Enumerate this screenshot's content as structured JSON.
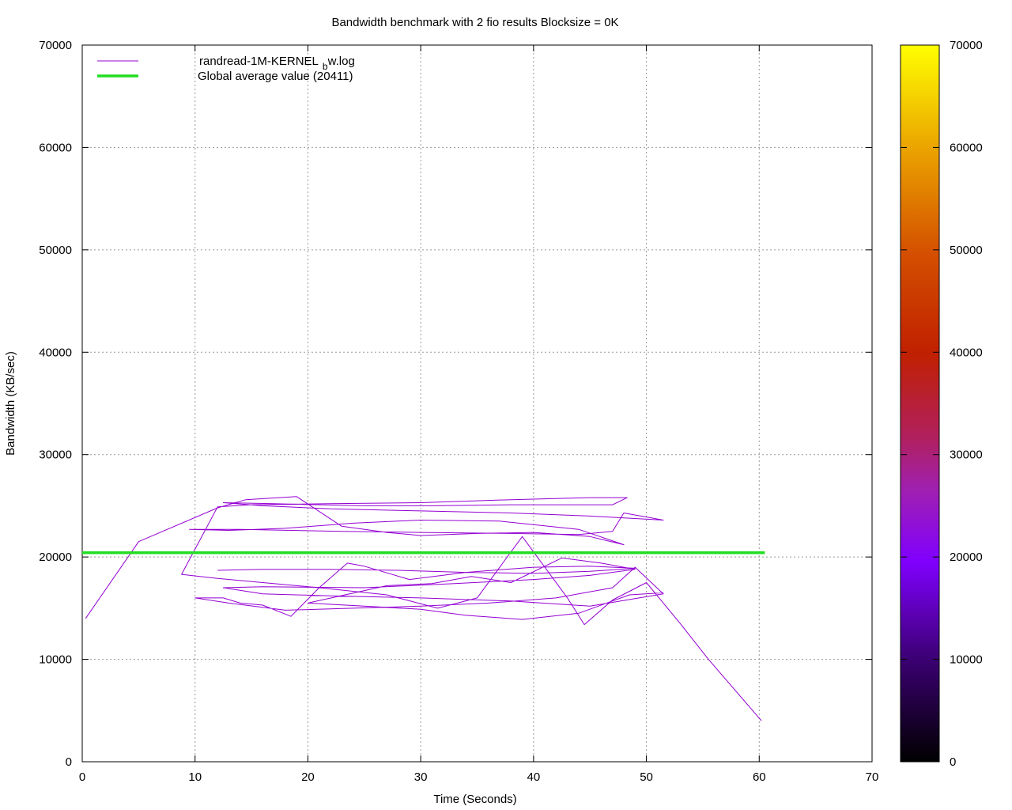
{
  "chart_data": {
    "type": "line",
    "title": "Bandwidth benchmark with 2 fio results  Blocksize = 0K",
    "xlabel": "Time (Seconds)",
    "ylabel": "Bandwidth (KB/sec)",
    "xlim": [
      0,
      70
    ],
    "ylim": [
      0,
      70000
    ],
    "x_ticks": [
      "0",
      "10",
      "20",
      "30",
      "40",
      "50",
      "60",
      "70"
    ],
    "y_ticks": [
      "0",
      "10000",
      "20000",
      "30000",
      "40000",
      "50000",
      "60000",
      "70000"
    ],
    "grid": true,
    "legend_position": "top-left",
    "colorbar": {
      "range": [
        0,
        70000
      ],
      "ticks": [
        "0",
        "10000",
        "20000",
        "30000",
        "40000",
        "50000",
        "60000",
        "70000"
      ]
    },
    "series": [
      {
        "name": "randread-1M-KERNEL",
        "name_subscript": "b",
        "name_suffix": "w.log",
        "color": "#9400d3",
        "points": [
          [
            0.3,
            14000
          ],
          [
            5,
            21500
          ],
          [
            12,
            24800
          ],
          [
            14.5,
            25600
          ],
          [
            19,
            25900
          ],
          [
            23,
            23000
          ],
          [
            27,
            22400
          ],
          [
            30,
            22100
          ],
          [
            35,
            22300
          ],
          [
            40,
            22400
          ],
          [
            45,
            22000
          ],
          [
            48,
            21200
          ],
          [
            44,
            22700
          ],
          [
            37,
            23500
          ],
          [
            30,
            23600
          ],
          [
            24,
            23300
          ],
          [
            18,
            22800
          ],
          [
            13,
            22600
          ],
          [
            9.5,
            22700
          ],
          [
            14,
            22700
          ],
          [
            23,
            22500
          ],
          [
            30,
            22400
          ],
          [
            38,
            22300
          ],
          [
            44,
            22200
          ],
          [
            47,
            22500
          ],
          [
            48,
            24300
          ],
          [
            51.5,
            23600
          ],
          [
            45,
            24000
          ],
          [
            38,
            24300
          ],
          [
            30,
            24500
          ],
          [
            22,
            24700
          ],
          [
            16,
            25000
          ],
          [
            12.5,
            25300
          ],
          [
            17,
            25200
          ],
          [
            25,
            25000
          ],
          [
            31,
            25000
          ],
          [
            38,
            25100
          ],
          [
            47,
            25100
          ],
          [
            48.3,
            25800
          ],
          [
            45,
            25800
          ],
          [
            38,
            25600
          ],
          [
            30,
            25300
          ],
          [
            22,
            25200
          ],
          [
            15,
            25100
          ],
          [
            12,
            24900
          ],
          [
            8.8,
            18300
          ],
          [
            12,
            17900
          ],
          [
            16,
            17500
          ],
          [
            21,
            17000
          ],
          [
            27,
            16300
          ],
          [
            31.5,
            15000
          ],
          [
            35,
            16000
          ],
          [
            39,
            22000
          ],
          [
            43,
            16000
          ],
          [
            44.5,
            13400
          ],
          [
            47,
            15800
          ],
          [
            50,
            17500
          ],
          [
            53,
            13500
          ],
          [
            55.5,
            10000
          ],
          [
            60.2,
            4000
          ]
        ]
      },
      {
        "name": "randread-1M-KERNEL",
        "name_subscript": "b",
        "name_suffix": "w.log",
        "color": "#9400d3",
        "points": [
          [
            12,
            18700
          ],
          [
            16,
            18800
          ],
          [
            22,
            18800
          ],
          [
            28,
            18700
          ],
          [
            34,
            18500
          ],
          [
            40,
            18400
          ],
          [
            45,
            18600
          ],
          [
            49,
            18900
          ],
          [
            45,
            19100
          ],
          [
            40,
            19000
          ],
          [
            34,
            18500
          ],
          [
            29,
            17800
          ],
          [
            25,
            19100
          ],
          [
            23.5,
            19400
          ],
          [
            21,
            17000
          ],
          [
            18.5,
            14200
          ],
          [
            16,
            15300
          ],
          [
            14,
            15500
          ],
          [
            12.5,
            16000
          ],
          [
            10,
            16000
          ],
          [
            13,
            15500
          ],
          [
            18,
            14800
          ],
          [
            24,
            15000
          ],
          [
            30,
            15200
          ],
          [
            36,
            15500
          ],
          [
            42,
            16000
          ],
          [
            47,
            17000
          ],
          [
            49,
            19000
          ],
          [
            51.5,
            16400
          ],
          [
            45,
            15200
          ],
          [
            38,
            15700
          ],
          [
            30,
            16000
          ],
          [
            22,
            16200
          ],
          [
            16,
            16400
          ],
          [
            12.5,
            17000
          ],
          [
            16,
            17100
          ],
          [
            25,
            17000
          ],
          [
            33,
            17400
          ],
          [
            40,
            17800
          ],
          [
            45,
            18200
          ],
          [
            49,
            18800
          ],
          [
            46,
            19400
          ],
          [
            42.5,
            19900
          ],
          [
            38,
            17500
          ],
          [
            34.5,
            18100
          ],
          [
            31,
            17400
          ],
          [
            27,
            17200
          ],
          [
            20,
            15500
          ],
          [
            30,
            14900
          ],
          [
            34,
            14300
          ],
          [
            39,
            13900
          ],
          [
            44,
            14500
          ],
          [
            48.5,
            16300
          ],
          [
            51.5,
            16500
          ]
        ]
      },
      {
        "name": "Global average value (20411)",
        "color": "#22dd22",
        "points": [
          [
            0,
            20411
          ],
          [
            60.5,
            20411
          ]
        ]
      }
    ]
  }
}
